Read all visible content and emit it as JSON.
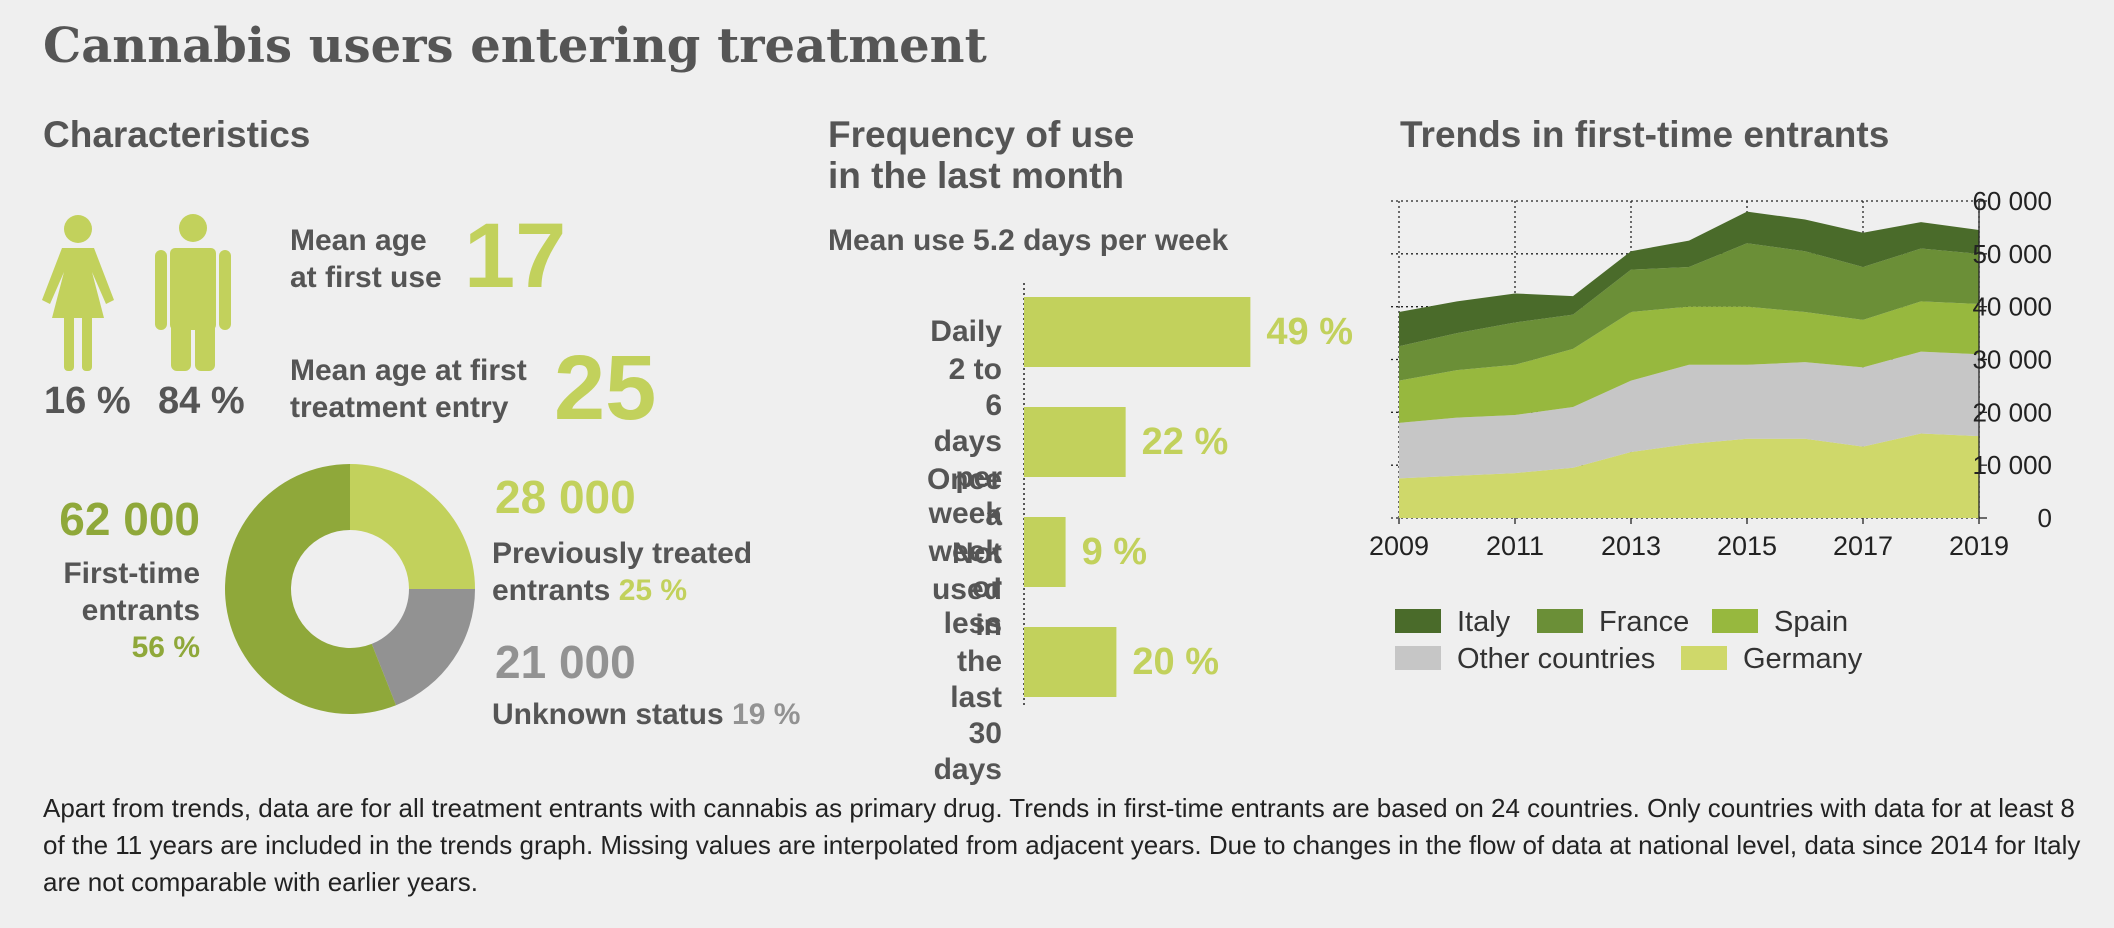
{
  "title": "Cannabis users entering treatment",
  "characteristics": {
    "heading": "Characteristics",
    "gender_shares": [
      "16 %",
      "84 %"
    ],
    "mean_age_first_use_label": "Mean age at first use",
    "mean_age_first_use": 17,
    "mean_age_treatment_label": "Mean age at first treatment entry",
    "mean_age_treatment": 25
  },
  "chart_data": [
    {
      "type": "donut",
      "categories": [
        "Previously treated entrants",
        "Unknown status",
        "First-time entrants"
      ],
      "values": [
        25,
        19,
        56
      ],
      "value_labels": [
        "25 %",
        "19 %",
        "56 %"
      ],
      "count_labels": [
        "28 000",
        "21 000",
        "62 000"
      ],
      "colors": [
        "#c2d15c",
        "#929292",
        "#8fa83a"
      ]
    },
    {
      "type": "bar",
      "title": "Frequency of use in the last month",
      "subtitle": "Mean use 5.2 days per week",
      "categories": [
        "Daily",
        "2 to 6 days per week",
        "Once a week or less",
        "Not used in the last 30 days"
      ],
      "values": [
        49,
        22,
        9,
        20
      ],
      "value_labels": [
        "49 %",
        "22 %",
        "9 %",
        "20 %"
      ],
      "color": "#c2d15c"
    },
    {
      "type": "area",
      "stacked": true,
      "title": "Trends in first-time entrants",
      "x": [
        2009,
        2010,
        2011,
        2012,
        2013,
        2014,
        2015,
        2016,
        2017,
        2018,
        2019
      ],
      "xlim": [
        2009,
        2019
      ],
      "xticks": [
        2009,
        2011,
        2013,
        2015,
        2017,
        2019
      ],
      "ylim": [
        0,
        60000
      ],
      "yticks": [
        0,
        {
          "value": 10000,
          "label": "10 000"
        },
        {
          "value": 20000,
          "label": "20 000"
        },
        {
          "value": 30000,
          "label": "30 000"
        },
        {
          "value": 40000,
          "label": "40 000"
        },
        {
          "value": 50000,
          "label": "50 000"
        },
        {
          "value": 60000,
          "label": "60 000"
        }
      ],
      "grid": true,
      "series": [
        {
          "name": "Italy",
          "color": "#4a6b2a",
          "values": [
            6500,
            6000,
            5500,
            3500,
            3500,
            5000,
            6000,
            6000,
            6500,
            5000,
            4500
          ]
        },
        {
          "name": "France",
          "color": "#6b8f37",
          "values": [
            6500,
            7000,
            8000,
            6500,
            8000,
            7500,
            12000,
            11500,
            10000,
            10000,
            9500
          ]
        },
        {
          "name": "Spain",
          "color": "#97b83e",
          "values": [
            8000,
            9000,
            9500,
            11000,
            13000,
            11000,
            11000,
            9500,
            9000,
            9500,
            9500
          ]
        },
        {
          "name": "Other countries",
          "color": "#c6c6c6",
          "values": [
            10500,
            11000,
            11000,
            11500,
            13500,
            15000,
            14000,
            14500,
            15000,
            15500,
            15500
          ]
        },
        {
          "name": "Germany",
          "color": "#cfd86a",
          "values": [
            7500,
            8000,
            8500,
            9500,
            12500,
            14000,
            15000,
            15000,
            13500,
            16000,
            15500
          ]
        }
      ]
    }
  ],
  "note": "Apart from trends, data are for all treatment entrants with cannabis as primary drug. Trends in first-time entrants are based on 24 countries. Only countries with data for at least 8 of the 11 years are included in the trends graph. Missing values are interpolated from adjacent years. Due to changes in the flow of data at national level, data since 2014 for Italy are not comparable with earlier years."
}
